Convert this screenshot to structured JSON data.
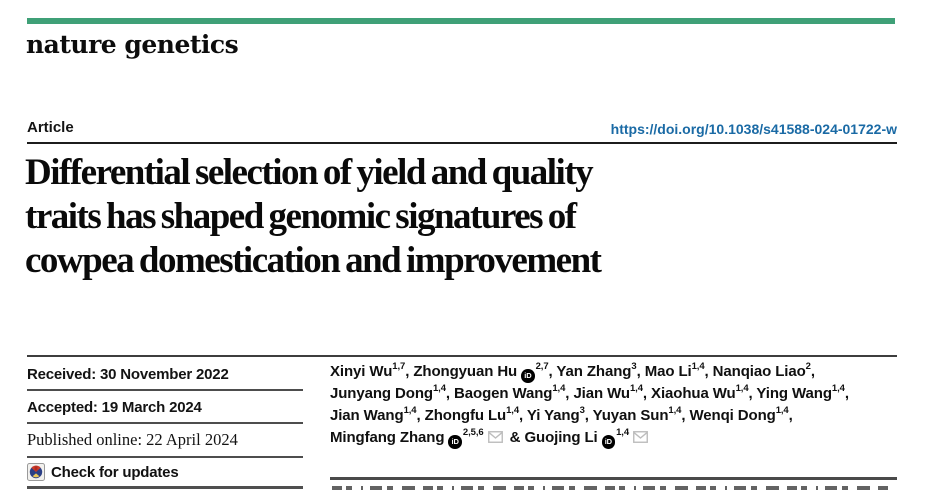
{
  "masthead": {
    "journal": "nature genetics",
    "accent_color": "#3fa077"
  },
  "header": {
    "article_label": "Article",
    "doi_link": "https://doi.org/10.1038/s41588-024-01722-w",
    "doi_color": "#1a6aa5"
  },
  "title": {
    "lines": [
      "Differential selection of yield and quality",
      "traits has shaped genomic signatures of",
      "cowpea domestication and improvement"
    ]
  },
  "metadata": {
    "rows": [
      {
        "text": "Received: 30 November 2022"
      },
      {
        "text": "Accepted: 19 March 2024"
      },
      {
        "text": "Published online: 22 April 2024"
      }
    ],
    "check_updates_label": "Check for updates"
  },
  "authors": {
    "lines": [
      [
        {
          "name": "Xinyi Wu",
          "sup": "1,7",
          "comma": true
        },
        {
          "name": "Zhongyuan Hu",
          "orcid": true,
          "sup": "2,7",
          "comma": true
        },
        {
          "name": "Yan Zhang",
          "sup": "3",
          "comma": true
        },
        {
          "name": "Mao Li",
          "sup": "1,4",
          "comma": true
        },
        {
          "name": "Nanqiao Liao",
          "sup": "2",
          "comma": true
        }
      ],
      [
        {
          "name": "Junyang Dong",
          "sup": "1,4",
          "comma": true
        },
        {
          "name": "Baogen Wang",
          "sup": "1,4",
          "comma": true
        },
        {
          "name": "Jian Wu",
          "sup": "1,4",
          "comma": true
        },
        {
          "name": "Xiaohua Wu",
          "sup": "1,4",
          "comma": true
        },
        {
          "name": "Ying Wang",
          "sup": "1,4",
          "comma": true
        }
      ],
      [
        {
          "name": "Jian Wang",
          "sup": "1,4",
          "comma": true
        },
        {
          "name": "Zhongfu Lu",
          "sup": "1,4",
          "comma": true
        },
        {
          "name": "Yi Yang",
          "sup": "3",
          "comma": true
        },
        {
          "name": "Yuyan Sun",
          "sup": "1,4",
          "comma": true
        },
        {
          "name": "Wenqi Dong",
          "sup": "1,4",
          "comma": true
        }
      ],
      [
        {
          "name": "Mingfang Zhang",
          "orcid": true,
          "sup": "2,5,6",
          "mail": true,
          "comma": false
        },
        {
          "prefix": "& ",
          "name": "Guojing Li",
          "orcid": true,
          "sup": "1,4",
          "mail": true,
          "comma": false
        }
      ]
    ]
  },
  "icons": {
    "crossmark": "crossmark-check-for-updates-icon",
    "orcid": "orcid-id-icon",
    "mail": "email-envelope-icon"
  }
}
